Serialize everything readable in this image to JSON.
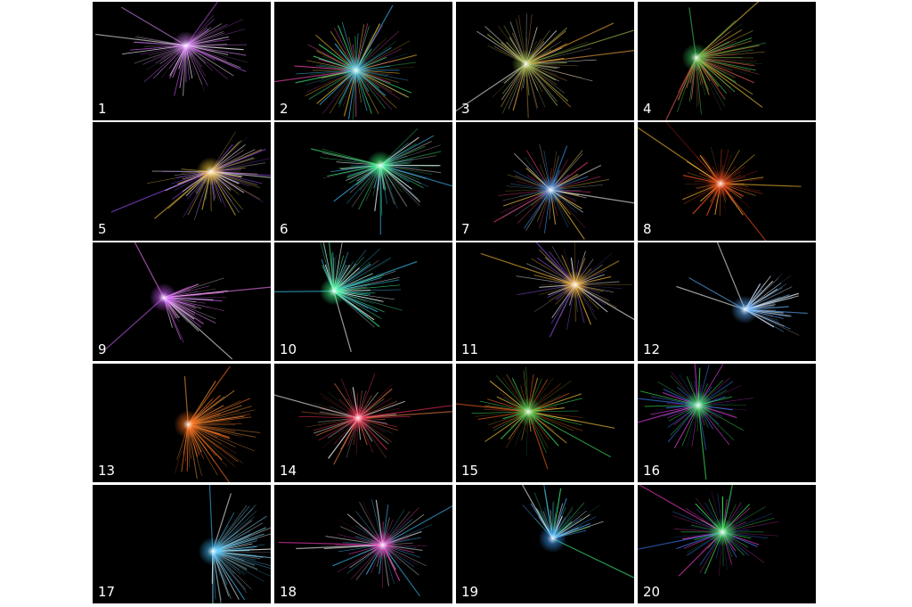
{
  "gallery": {
    "background_color": "#ffffff",
    "tile_background": "#000000",
    "tiles": [
      {
        "label": "1",
        "palette": [
          "#e08cff",
          "#c050e0",
          "#ffffff"
        ],
        "shape": "spiral-fan"
      },
      {
        "label": "2",
        "palette": [
          "#3cc8ff",
          "#ffcc33",
          "#ff4fbf",
          "#40ff80"
        ],
        "shape": "circle-fan"
      },
      {
        "label": "3",
        "palette": [
          "#a0c050",
          "#ffb040",
          "#ffffff"
        ],
        "shape": "ellipse-fan"
      },
      {
        "label": "4",
        "palette": [
          "#40d060",
          "#ffd040",
          "#ff6060"
        ],
        "shape": "wing-fan"
      },
      {
        "label": "5",
        "palette": [
          "#ffd040",
          "#a050ff",
          "#ffffff"
        ],
        "shape": "spiral-fan"
      },
      {
        "label": "6",
        "palette": [
          "#40ff80",
          "#40c0ff",
          "#ffffff"
        ],
        "shape": "spiral-fan"
      },
      {
        "label": "7",
        "palette": [
          "#40a0ff",
          "#ff4080",
          "#ffd040",
          "#ffffff"
        ],
        "shape": "burst"
      },
      {
        "label": "8",
        "palette": [
          "#ff5020",
          "#ffc030",
          "#801010"
        ],
        "shape": "petal"
      },
      {
        "label": "9",
        "palette": [
          "#d060ff",
          "#ff80ff",
          "#ffffff"
        ],
        "shape": "streak"
      },
      {
        "label": "10",
        "palette": [
          "#40ff90",
          "#40d0ff",
          "#ffffff"
        ],
        "shape": "wing-fan"
      },
      {
        "label": "11",
        "palette": [
          "#ffc030",
          "#a060ff",
          "#ffffff"
        ],
        "shape": "burst"
      },
      {
        "label": "12",
        "palette": [
          "#60b0ff",
          "#ffffff"
        ],
        "shape": "streak"
      },
      {
        "label": "13",
        "palette": [
          "#ff7020",
          "#ffa040"
        ],
        "shape": "wing-fan"
      },
      {
        "label": "14",
        "palette": [
          "#ff3060",
          "#ff8040",
          "#ffffff"
        ],
        "shape": "burst"
      },
      {
        "label": "15",
        "palette": [
          "#40e060",
          "#ff6020",
          "#ffd040"
        ],
        "shape": "burst"
      },
      {
        "label": "16",
        "palette": [
          "#40ff60",
          "#ff40ff",
          "#4080ff"
        ],
        "shape": "burst"
      },
      {
        "label": "17",
        "palette": [
          "#40c0ff",
          "#80e0ff",
          "#ffffff"
        ],
        "shape": "wing-fan"
      },
      {
        "label": "18",
        "palette": [
          "#ff40c0",
          "#40c0ff",
          "#ffffff"
        ],
        "shape": "burst"
      },
      {
        "label": "19",
        "palette": [
          "#40a0ff",
          "#40ff90",
          "#ffffff"
        ],
        "shape": "streak"
      },
      {
        "label": "20",
        "palette": [
          "#40ff60",
          "#ff40d0",
          "#4080ff"
        ],
        "shape": "burst"
      }
    ]
  }
}
